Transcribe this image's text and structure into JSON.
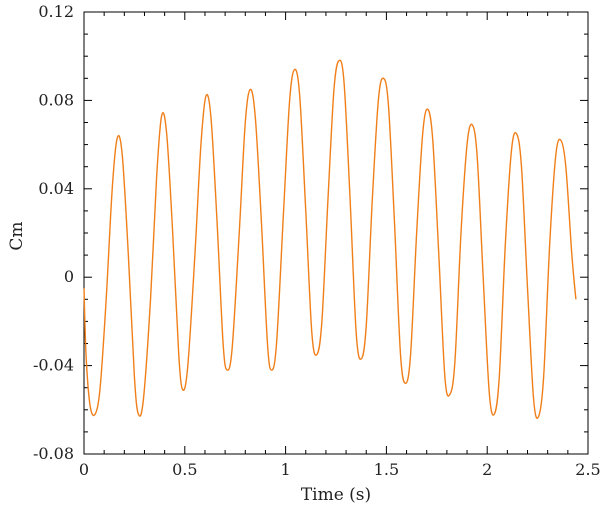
{
  "chart_data": {
    "type": "line",
    "title": "",
    "xlabel": "Time (s)",
    "ylabel": "Cm",
    "xlim": [
      0,
      2.5
    ],
    "ylim": [
      -0.08,
      0.12
    ],
    "x_ticks": [
      {
        "value": 0,
        "label": "0"
      },
      {
        "value": 0.5,
        "label": "0.5"
      },
      {
        "value": 1.0,
        "label": "1"
      },
      {
        "value": 1.5,
        "label": "1.5"
      },
      {
        "value": 2.0,
        "label": "2"
      },
      {
        "value": 2.5,
        "label": "2.5"
      }
    ],
    "y_ticks": [
      {
        "value": -0.08,
        "label": "-0.08"
      },
      {
        "value": -0.04,
        "label": "-0.04"
      },
      {
        "value": 0,
        "label": "0"
      },
      {
        "value": 0.04,
        "label": "0.04"
      },
      {
        "value": 0.08,
        "label": "0.08"
      },
      {
        "value": 0.12,
        "label": "0.12"
      }
    ],
    "grid": false,
    "series": [
      {
        "color": "#f07f1a",
        "points": [
          [
            0.0,
            -0.005
          ],
          [
            0.01,
            -0.035
          ],
          [
            0.03,
            -0.058
          ],
          [
            0.055,
            -0.062
          ],
          [
            0.08,
            -0.05
          ],
          [
            0.11,
            -0.01
          ],
          [
            0.14,
            0.04
          ],
          [
            0.165,
            0.063
          ],
          [
            0.19,
            0.055
          ],
          [
            0.22,
            0.01
          ],
          [
            0.25,
            -0.045
          ],
          [
            0.27,
            -0.062
          ],
          [
            0.295,
            -0.055
          ],
          [
            0.33,
            -0.01
          ],
          [
            0.36,
            0.045
          ],
          [
            0.385,
            0.073
          ],
          [
            0.41,
            0.065
          ],
          [
            0.44,
            0.02
          ],
          [
            0.47,
            -0.035
          ],
          [
            0.49,
            -0.051
          ],
          [
            0.515,
            -0.04
          ],
          [
            0.55,
            0.01
          ],
          [
            0.58,
            0.06
          ],
          [
            0.605,
            0.082
          ],
          [
            0.63,
            0.072
          ],
          [
            0.66,
            0.025
          ],
          [
            0.69,
            -0.03
          ],
          [
            0.71,
            -0.042
          ],
          [
            0.735,
            -0.032
          ],
          [
            0.77,
            0.02
          ],
          [
            0.8,
            0.07
          ],
          [
            0.825,
            0.085
          ],
          [
            0.85,
            0.072
          ],
          [
            0.88,
            0.025
          ],
          [
            0.91,
            -0.03
          ],
          [
            0.93,
            -0.042
          ],
          [
            0.955,
            -0.03
          ],
          [
            0.99,
            0.03
          ],
          [
            1.02,
            0.08
          ],
          [
            1.045,
            0.094
          ],
          [
            1.07,
            0.082
          ],
          [
            1.1,
            0.03
          ],
          [
            1.13,
            -0.025
          ],
          [
            1.155,
            -0.035
          ],
          [
            1.18,
            -0.02
          ],
          [
            1.21,
            0.035
          ],
          [
            1.24,
            0.085
          ],
          [
            1.265,
            0.098
          ],
          [
            1.29,
            0.088
          ],
          [
            1.32,
            0.035
          ],
          [
            1.35,
            -0.025
          ],
          [
            1.375,
            -0.037
          ],
          [
            1.4,
            -0.022
          ],
          [
            1.43,
            0.035
          ],
          [
            1.46,
            0.08
          ],
          [
            1.485,
            0.09
          ],
          [
            1.51,
            0.078
          ],
          [
            1.54,
            0.025
          ],
          [
            1.57,
            -0.035
          ],
          [
            1.595,
            -0.048
          ],
          [
            1.62,
            -0.035
          ],
          [
            1.65,
            0.02
          ],
          [
            1.68,
            0.065
          ],
          [
            1.705,
            0.076
          ],
          [
            1.73,
            0.062
          ],
          [
            1.76,
            0.01
          ],
          [
            1.79,
            -0.045
          ],
          [
            1.815,
            -0.053
          ],
          [
            1.84,
            -0.038
          ],
          [
            1.87,
            0.02
          ],
          [
            1.9,
            0.06
          ],
          [
            1.925,
            0.069
          ],
          [
            1.95,
            0.055
          ],
          [
            1.98,
            0.0
          ],
          [
            2.01,
            -0.052
          ],
          [
            2.035,
            -0.062
          ],
          [
            2.06,
            -0.045
          ],
          [
            2.09,
            0.015
          ],
          [
            2.12,
            0.057
          ],
          [
            2.145,
            0.065
          ],
          [
            2.17,
            0.05
          ],
          [
            2.2,
            -0.005
          ],
          [
            2.23,
            -0.055
          ],
          [
            2.255,
            -0.063
          ],
          [
            2.28,
            -0.045
          ],
          [
            2.31,
            0.015
          ],
          [
            2.34,
            0.055
          ],
          [
            2.365,
            0.062
          ],
          [
            2.39,
            0.05
          ],
          [
            2.42,
            0.01
          ],
          [
            2.44,
            -0.01
          ]
        ]
      }
    ]
  }
}
